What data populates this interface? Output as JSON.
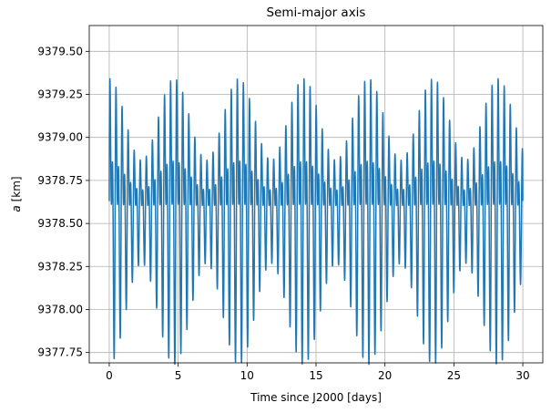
{
  "chart_data": {
    "type": "line",
    "title": "Semi-major axis",
    "xlabel": "Time since J2000 [days]",
    "ylabel_var": "a",
    "ylabel_unit": " [km]",
    "xlim": [
      -1.45,
      31.45
    ],
    "ylim": [
      9377.69,
      9379.65
    ],
    "xticks": [
      0,
      5,
      10,
      15,
      20,
      25,
      30
    ],
    "xtick_labels": [
      "0",
      "5",
      "10",
      "15",
      "20",
      "25",
      "30"
    ],
    "yticks": [
      9377.75,
      9378.0,
      9378.25,
      9378.5,
      9378.75,
      9379.0,
      9379.25,
      9379.5
    ],
    "ytick_labels": [
      "9377.75",
      "9378.00",
      "9378.25",
      "9378.50",
      "9378.75",
      "9379.00",
      "9379.25",
      "9379.50"
    ],
    "grid": true,
    "series": [
      {
        "color": "#1f77b4",
        "x_range": [
          0,
          30
        ],
        "mean": 9378.6,
        "oscillation_period_days": 0.44,
        "amplitude_max": 0.97,
        "amplitude_min": 0.35,
        "beat_period_days": 4.7,
        "y_start": 9378.63,
        "y_end": 9378.63
      }
    ]
  }
}
